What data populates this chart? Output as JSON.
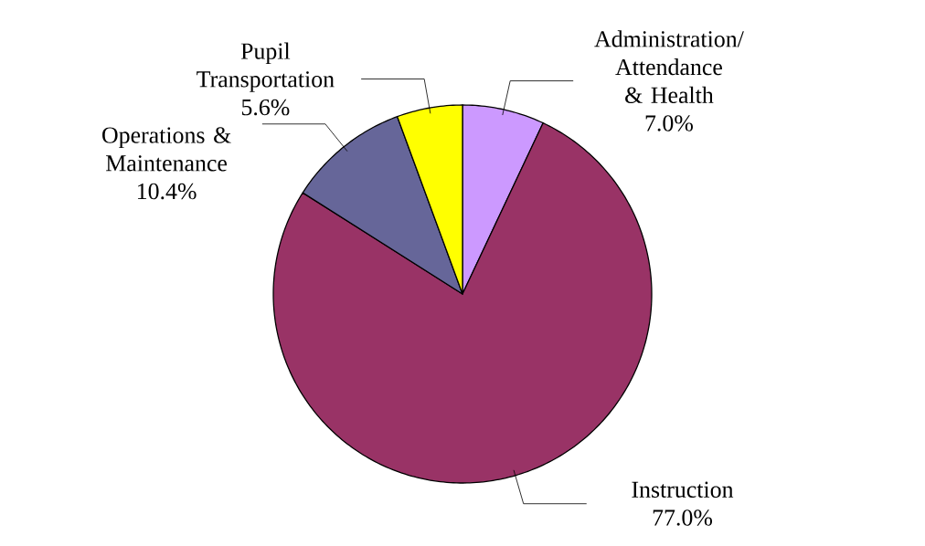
{
  "chart_data": {
    "type": "pie",
    "categories": [
      "Administration/ Attendance & Health",
      "Instruction",
      "Operations & Maintenance",
      "Pupil Transportation"
    ],
    "values": [
      7.0,
      77.0,
      10.4,
      5.6
    ],
    "colors": [
      "#cc99ff",
      "#993366",
      "#666699",
      "#ffff00"
    ],
    "value_labels": [
      "7.0%",
      "77.0%",
      "10.4%",
      "5.6%"
    ]
  }
}
